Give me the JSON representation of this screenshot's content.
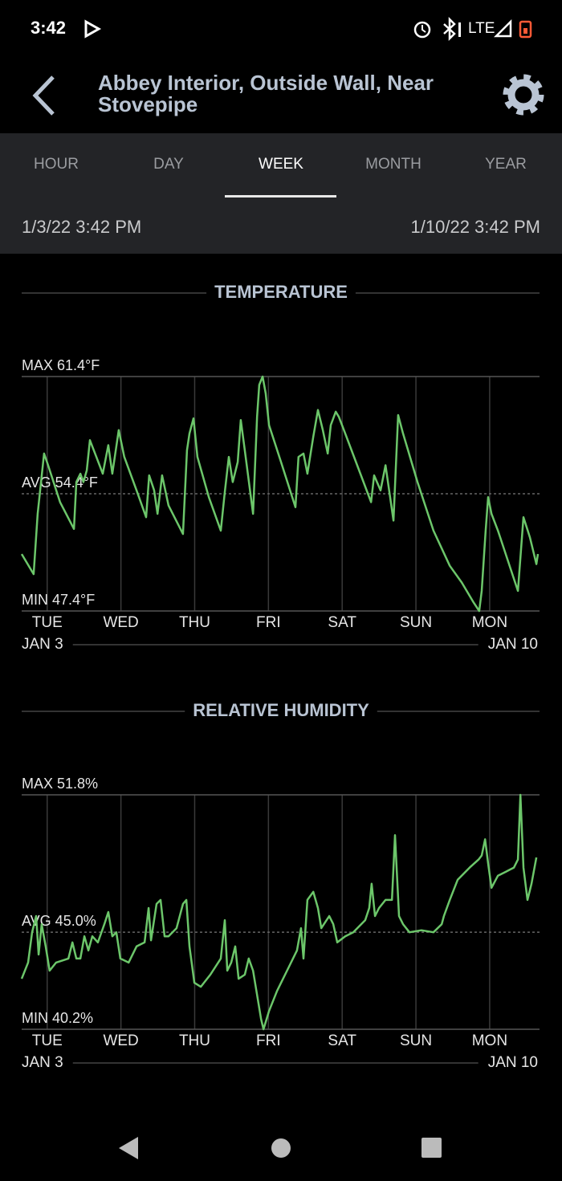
{
  "status_bar": {
    "time": "3:42",
    "network": "LTE"
  },
  "header": {
    "title": "Abbey Interior, Outside Wall, Near Stovepipe"
  },
  "tabs": [
    "HOUR",
    "DAY",
    "WEEK",
    "MONTH",
    "YEAR"
  ],
  "active_tab": 2,
  "range": {
    "start": "1/3/22 3:42 PM",
    "end": "1/10/22 3:42 PM"
  },
  "charts": [
    {
      "type": "line",
      "title": "TEMPERATURE",
      "color": "#6cc66a",
      "xlim": [
        0,
        168
      ],
      "xticks": [
        {
          "value": 8.3,
          "label": "TUE"
        },
        {
          "value": 32.3,
          "label": "WED"
        },
        {
          "value": 56.3,
          "label": "THU"
        },
        {
          "value": 80.3,
          "label": "FRI"
        },
        {
          "value": 104.3,
          "label": "SAT"
        },
        {
          "value": 128.3,
          "label": "SUN"
        },
        {
          "value": 152.3,
          "label": "MON"
        }
      ],
      "ylim": [
        47.4,
        61.4
      ],
      "yticks": [
        {
          "value": 61.4,
          "label": "MAX 61.4°F"
        },
        {
          "value": 54.4,
          "label": "AVG 54.4°F"
        },
        {
          "value": 47.4,
          "label": "MIN 47.4°F"
        }
      ],
      "start_label": "JAN 3",
      "end_label": "JAN 10",
      "x": [
        0,
        3.9,
        5.2,
        7.3,
        8.6,
        12.5,
        17.0,
        17.8,
        19.1,
        20.1,
        21.2,
        22.2,
        24.3,
        26.4,
        28.2,
        29.5,
        31.6,
        33.4,
        37.4,
        40.5,
        41.5,
        43.1,
        44.2,
        45.7,
        47.8,
        52.5,
        53.8,
        54.6,
        55.9,
        57.2,
        60.9,
        64.8,
        66.1,
        67.4,
        68.7,
        70.3,
        71.3,
        72.6,
        75.3,
        76.6,
        77.3,
        78.4,
        79.4,
        80.5,
        84.4,
        89.1,
        90.1,
        91.7,
        93.0,
        94.9,
        96.4,
        98.0,
        99.6,
        100.6,
        102.2,
        103.2,
        105.3,
        109.2,
        113.7,
        114.7,
        116.8,
        118.4,
        121.0,
        122.5,
        124.1,
        128.8,
        134.0,
        139.3,
        143.2,
        147.1,
        148.9,
        149.7,
        151.0,
        151.8,
        152.9,
        155.0,
        161.5,
        163.3,
        165.4,
        167.5,
        168.0
      ],
      "values": [
        50.8,
        49.6,
        53.2,
        56.8,
        56.1,
        53.9,
        52.3,
        55.1,
        55.6,
        55.1,
        55.8,
        57.6,
        56.6,
        55.6,
        57.3,
        55.6,
        58.2,
        56.6,
        54.6,
        53.0,
        55.5,
        54.6,
        53.2,
        55.5,
        53.7,
        52.0,
        57.0,
        58.0,
        58.9,
        56.6,
        54.2,
        52.2,
        54.5,
        56.6,
        55.1,
        56.3,
        58.8,
        57.0,
        53.2,
        59.0,
        60.9,
        61.4,
        60.4,
        58.5,
        56.3,
        53.6,
        56.6,
        56.8,
        55.6,
        57.8,
        59.4,
        58.2,
        56.8,
        58.5,
        59.3,
        59.0,
        58.0,
        56.1,
        53.9,
        55.5,
        54.6,
        56.1,
        52.8,
        59.1,
        58.0,
        55.1,
        52.2,
        50.1,
        49.1,
        47.9,
        47.4,
        48.6,
        52.2,
        54.2,
        53.2,
        52.2,
        48.6,
        53.0,
        51.8,
        50.2,
        50.8
      ]
    },
    {
      "type": "line",
      "title": "RELATIVE HUMIDITY",
      "color": "#6cc66a",
      "xlim": [
        0,
        168
      ],
      "xticks": [
        {
          "value": 8.3,
          "label": "TUE"
        },
        {
          "value": 32.3,
          "label": "WED"
        },
        {
          "value": 56.3,
          "label": "THU"
        },
        {
          "value": 80.3,
          "label": "FRI"
        },
        {
          "value": 104.3,
          "label": "SAT"
        },
        {
          "value": 128.3,
          "label": "SUN"
        },
        {
          "value": 152.3,
          "label": "MON"
        }
      ],
      "ylim": [
        40.2,
        51.8
      ],
      "yticks": [
        {
          "value": 51.8,
          "label": "MAX 51.8%"
        },
        {
          "value": 45.0,
          "label": "AVG 45.0%"
        },
        {
          "value": 40.2,
          "label": "MIN 40.2%"
        }
      ],
      "start_label": "JAN 3",
      "end_label": "JAN 10",
      "x": [
        0,
        2.1,
        3.4,
        4.7,
        5.5,
        6.5,
        7.8,
        9.1,
        11.2,
        15.2,
        16.5,
        17.8,
        19.1,
        20.4,
        21.7,
        23.0,
        24.8,
        26.9,
        28.2,
        29.5,
        30.8,
        32.1,
        34.8,
        37.4,
        40.0,
        41.3,
        42.1,
        43.9,
        45.2,
        46.5,
        47.8,
        50.4,
        52.5,
        53.6,
        54.6,
        56.2,
        58.3,
        61.4,
        64.8,
        66.1,
        66.9,
        68.2,
        69.5,
        70.6,
        72.6,
        73.9,
        75.3,
        76.6,
        77.9,
        78.7,
        80.5,
        83.1,
        87.0,
        89.6,
        90.9,
        91.7,
        93.0,
        94.9,
        96.4,
        97.5,
        100.1,
        101.4,
        102.7,
        105.3,
        107.9,
        111.8,
        113.1,
        113.9,
        115.0,
        116.3,
        118.4,
        120.5,
        121.5,
        122.8,
        124.1,
        126.2,
        130.1,
        134.0,
        136.7,
        137.4,
        139.3,
        141.9,
        145.8,
        148.7,
        149.7,
        150.8,
        151.8,
        152.9,
        155.0,
        157.6,
        160.2,
        161.5,
        162.3,
        163.3,
        164.6,
        165.9,
        167.5
      ],
      "values": [
        42.7,
        43.5,
        45.0,
        45.8,
        43.9,
        45.4,
        44.3,
        43.1,
        43.5,
        43.7,
        44.5,
        43.7,
        43.7,
        44.8,
        44.1,
        44.8,
        44.5,
        45.4,
        46.0,
        44.8,
        45.0,
        43.7,
        43.5,
        44.3,
        44.5,
        46.2,
        44.6,
        46.4,
        46.6,
        44.8,
        44.8,
        45.2,
        46.4,
        46.6,
        44.3,
        42.5,
        42.3,
        42.9,
        43.7,
        45.6,
        43.1,
        43.5,
        44.3,
        42.7,
        42.9,
        43.7,
        43.1,
        41.9,
        40.7,
        40.2,
        41.1,
        42.1,
        43.3,
        44.1,
        45.2,
        43.7,
        46.6,
        47.0,
        46.2,
        45.2,
        45.8,
        45.4,
        44.5,
        44.8,
        45.0,
        45.6,
        46.2,
        47.4,
        45.8,
        46.2,
        46.6,
        46.6,
        49.8,
        45.8,
        45.4,
        45.0,
        45.1,
        45.0,
        45.4,
        45.8,
        46.6,
        47.6,
        48.2,
        48.6,
        48.8,
        49.6,
        48.4,
        47.2,
        47.8,
        48.0,
        48.2,
        48.6,
        51.8,
        48.2,
        46.6,
        47.4,
        48.7
      ]
    }
  ]
}
